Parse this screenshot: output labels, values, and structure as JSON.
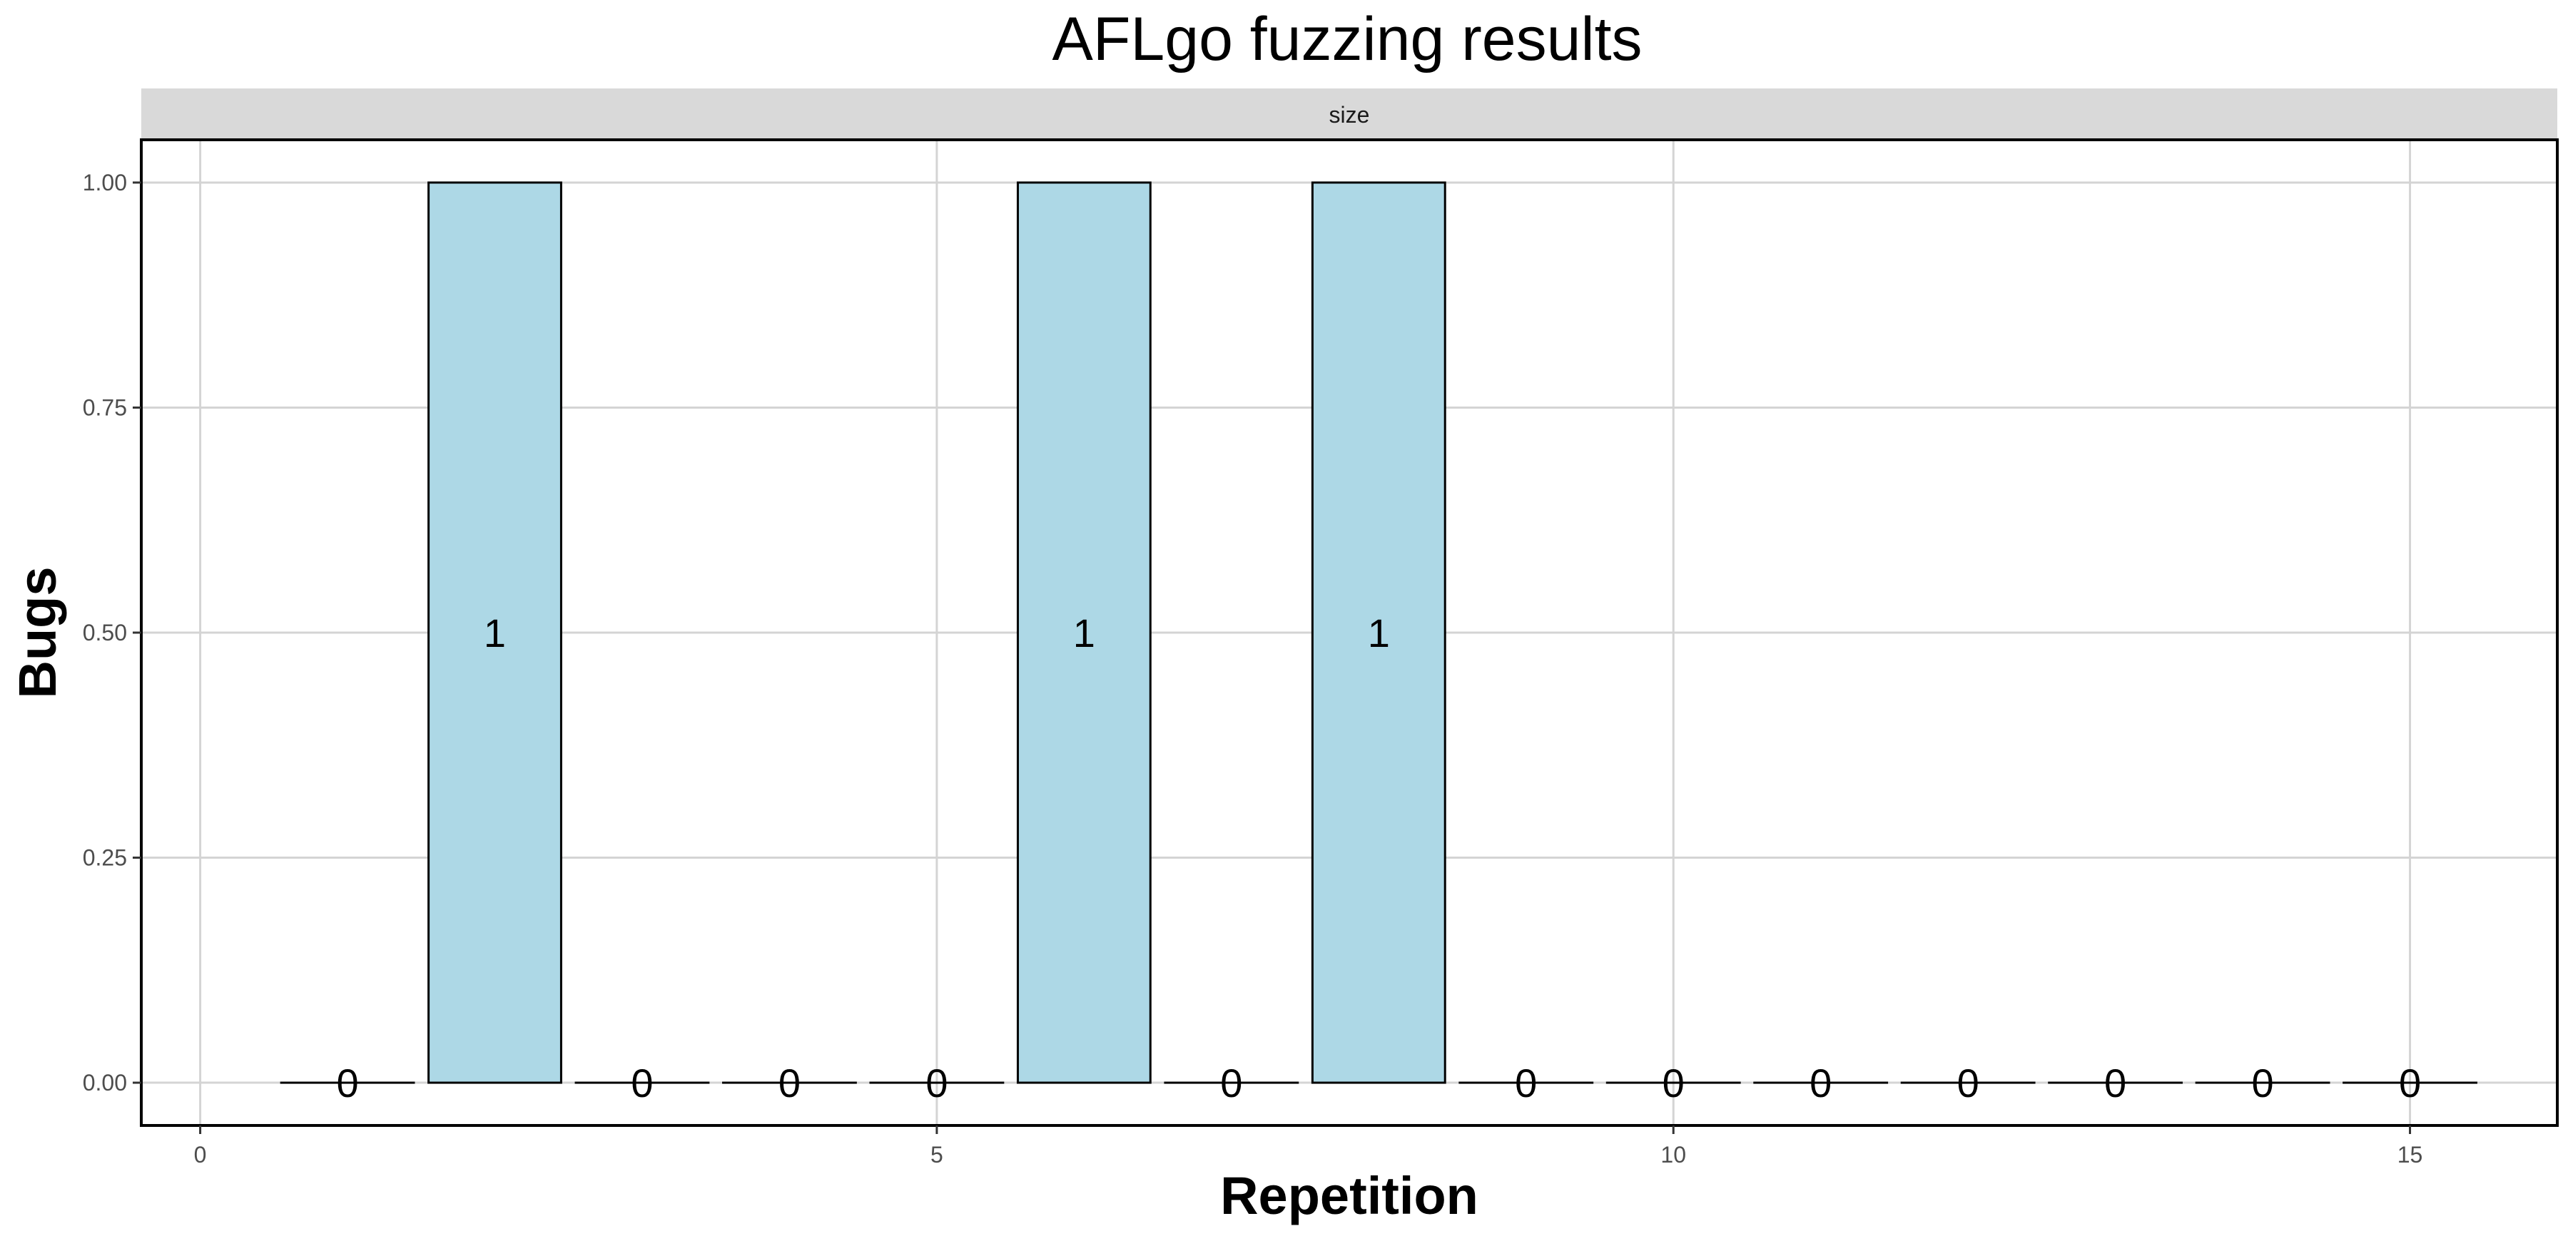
{
  "chart_data": {
    "type": "bar",
    "title": "AFLgo fuzzing results",
    "facet": "size",
    "xlabel": "Repetition",
    "ylabel": "Bugs",
    "x": [
      1,
      2,
      3,
      4,
      5,
      6,
      7,
      8,
      9,
      10,
      11,
      12,
      13,
      14,
      15
    ],
    "values": [
      0,
      1,
      0,
      0,
      0,
      1,
      0,
      1,
      0,
      0,
      0,
      0,
      0,
      0,
      0
    ],
    "data_labels": [
      "0",
      "1",
      "0",
      "0",
      "0",
      "1",
      "0",
      "1",
      "0",
      "0",
      "0",
      "0",
      "0",
      "0",
      "0"
    ],
    "xlim": [
      -0.4,
      16.0
    ],
    "ylim": [
      -0.0475,
      1.0475
    ],
    "xticks": [
      0,
      5,
      10,
      15
    ],
    "xtick_labels": [
      "0",
      "5",
      "10",
      "15"
    ],
    "yticks": [
      0,
      0.25,
      0.5,
      0.75,
      1.0
    ],
    "ytick_labels": [
      "0.00",
      "0.25",
      "0.50",
      "0.75",
      "1.00"
    ],
    "grid": true,
    "bar_fill": "#add8e6",
    "bar_edge": "#000000"
  }
}
